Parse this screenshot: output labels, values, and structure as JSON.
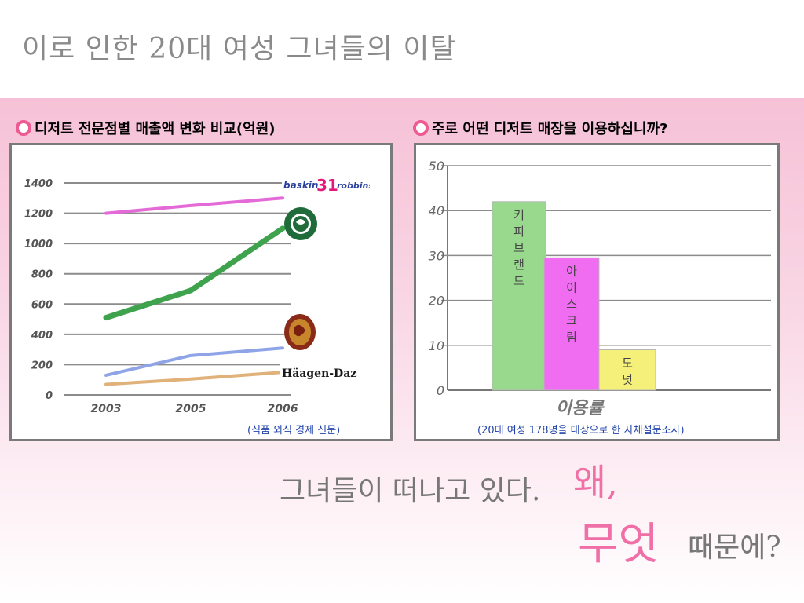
{
  "slide": {
    "title": "이로 인한 20대 여성 그녀들의 이탈",
    "tagline": "그녀들이 떠나고 있다.",
    "why": "왜,",
    "what": "무엇",
    "because": "때문에?"
  },
  "left_panel": {
    "heading": "디저트 전문점별 매출액 변화 비교(억원)",
    "source": "(식품 외식 경제 신문)",
    "logos": {
      "baskin": "Baskin Robbins",
      "starbucks": "STARBUCKS COFFEE",
      "java": "Java",
      "haagen": "Häagen-Dazs"
    }
  },
  "right_panel": {
    "heading": "주로 어떤 디저트 매장을 이용하십니까?",
    "source": "(20대 여성 178명을 대상으로 한 자체설문조사)"
  },
  "chart_data": [
    {
      "type": "line",
      "x": [
        "2003",
        "2005",
        "2006"
      ],
      "series": [
        {
          "name": "Baskin Robbins",
          "values": [
            1200,
            1250,
            1300
          ],
          "color": "#e46ad8"
        },
        {
          "name": "STARBUCKS COFFEE",
          "values": [
            510,
            690,
            1100
          ],
          "color": "#3fa34d"
        },
        {
          "name": "Java",
          "values": [
            130,
            260,
            310
          ],
          "color": "#8fa4e6"
        },
        {
          "name": "Häagen-Dazs",
          "values": [
            70,
            105,
            150
          ],
          "color": "#e0b27a"
        }
      ],
      "yticks": [
        "0",
        "200",
        "400",
        "600",
        "800",
        "1000",
        "1200",
        "1400"
      ],
      "ylim": [
        0,
        1400
      ],
      "grid": true
    },
    {
      "type": "bar",
      "categories": [
        "커피브랜드",
        "아이스크림",
        "도넛"
      ],
      "values": [
        42,
        29.5,
        9
      ],
      "colors": [
        "#98d98e",
        "#f06cf0",
        "#f4f07a"
      ],
      "yticks": [
        "0",
        "10",
        "20",
        "30",
        "40",
        "50"
      ],
      "ylim": [
        0,
        50
      ],
      "xlabel": "이용률",
      "grid": true
    }
  ]
}
